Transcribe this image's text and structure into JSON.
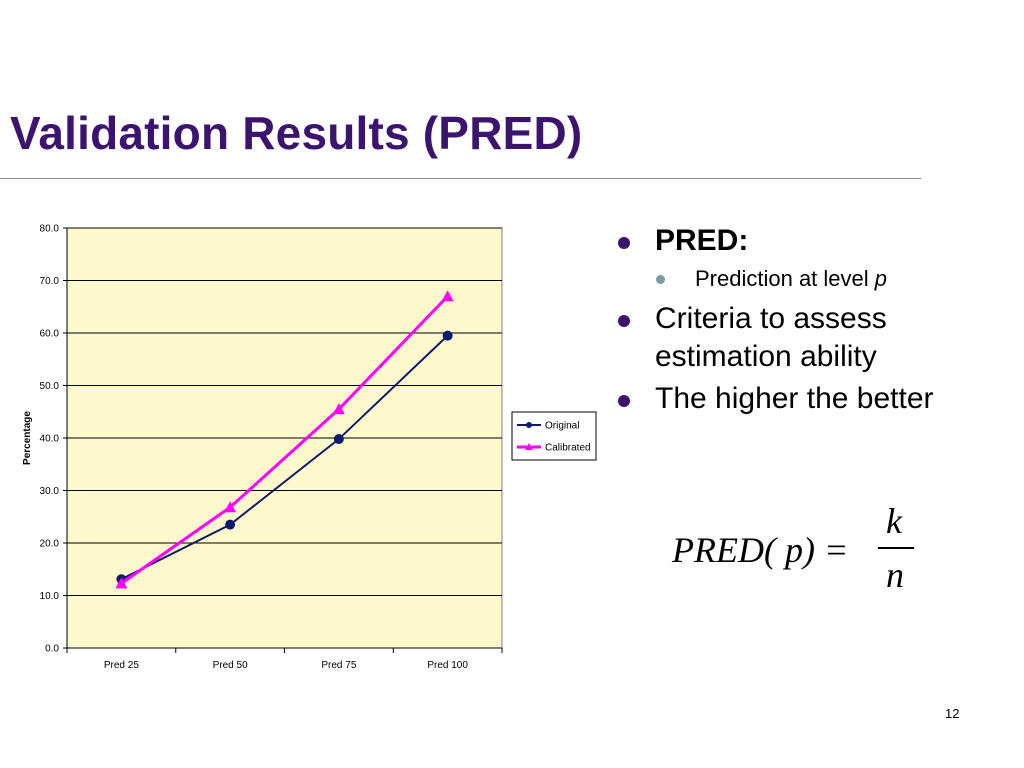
{
  "slide": {
    "title": "Validation Results (PRED)",
    "page_number": "12"
  },
  "bullets": {
    "b1": "PRED:",
    "b1_sub_text": "Prediction at level ",
    "b1_sub_italic": "p",
    "b2": "Criteria to assess estimation ability",
    "b3": "The higher the better"
  },
  "formula": {
    "lhs": "PRED( p) = ",
    "numerator": "k",
    "denominator": "n"
  },
  "colors": {
    "title": "#3b1470",
    "plot_background": "#fdf9cc",
    "original": "#0f1a6b",
    "calibrated": "#ff00ff"
  },
  "chart_data": {
    "type": "line",
    "categories": [
      "Pred 25",
      "Pred 50",
      "Pred 75",
      "Pred 100"
    ],
    "series": [
      {
        "name": "Original",
        "values": [
          13.1,
          23.5,
          39.8,
          59.5
        ],
        "color": "#0f1a6b",
        "marker": "circle"
      },
      {
        "name": "Calibrated",
        "values": [
          12.3,
          26.8,
          45.5,
          67.0
        ],
        "color": "#ff00ff",
        "marker": "triangle"
      }
    ],
    "ylabel": "Percentage",
    "ylim": [
      0,
      80
    ],
    "yticks": [
      "0.0",
      "10.0",
      "20.0",
      "30.0",
      "40.0",
      "50.0",
      "60.0",
      "70.0",
      "80.0"
    ],
    "grid": true,
    "legend": "right"
  }
}
